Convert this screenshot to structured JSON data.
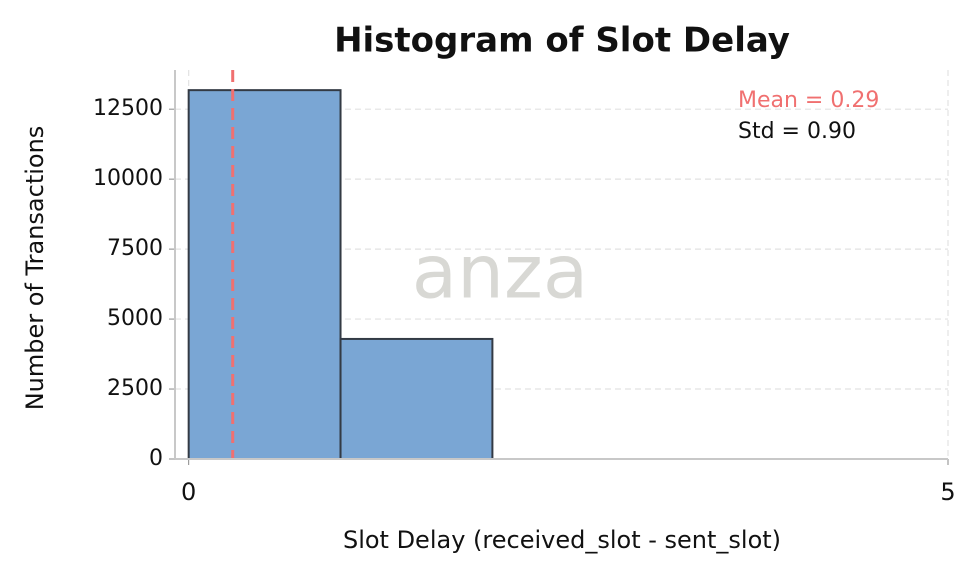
{
  "chart_data": {
    "type": "histogram",
    "title": "Histogram of Slot Delay",
    "x_label": "Slot Delay (received_slot - sent_slot)",
    "y_label": "Number of Transactions",
    "bins": [
      0,
      1,
      2
    ],
    "values": [
      13180,
      4290
    ],
    "color": "#7aa6d4",
    "edge_color": "#333a44",
    "xlim": [
      -0.09,
      5
    ],
    "xticks": [
      0,
      5
    ],
    "ylim": [
      0,
      13900
    ],
    "yticks": [
      0,
      2500,
      5000,
      7500,
      10000,
      12500
    ],
    "grid": true,
    "mean": 0.29,
    "mean_color": "#f07070",
    "mean_label": "Mean = 0.29",
    "std_label": "Std  = 0.90",
    "watermark": "anza"
  }
}
